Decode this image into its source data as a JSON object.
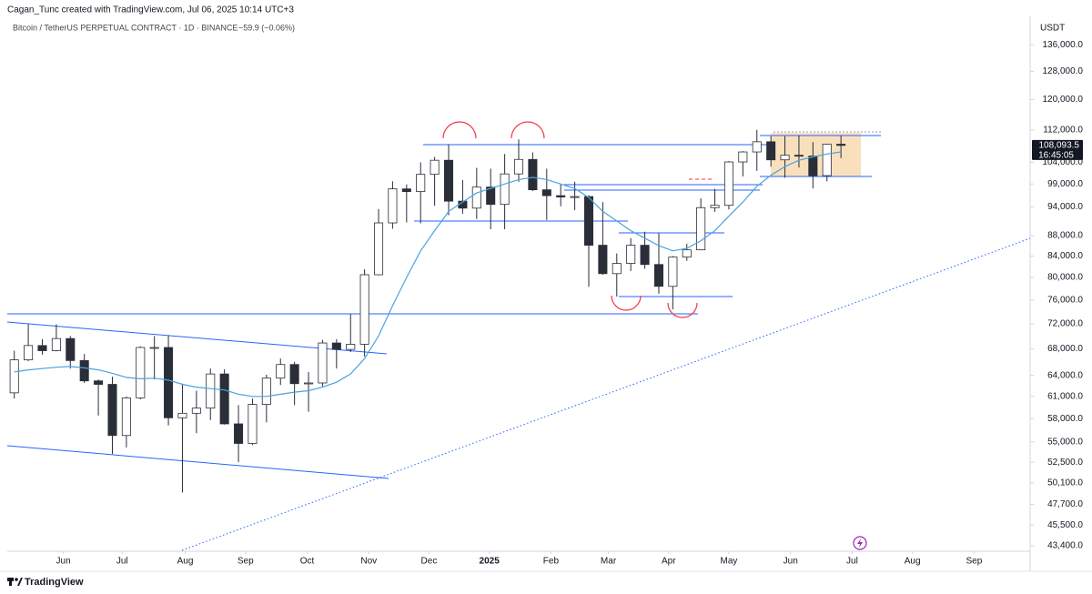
{
  "chart_data": {
    "type": "candlestick",
    "attribution": "Cagan_Tunc created with TradingView.com, Jul 06, 2025 10:14 UTC+3",
    "title": "Bitcoin / TetherUS PERPETUAL CONTRACT · 1D · BINANCE",
    "change": "−59.9 (−0.06%)",
    "axis_label": "USDT",
    "last_price": {
      "value": 108093.5,
      "label": "108,093.5"
    },
    "countdown": "16:45:05",
    "brand": "TradingView",
    "log_scale": true,
    "grid": false,
    "up_color": "#ffffff",
    "down_color": "#2a2e39",
    "wick_color": "#2a2e39",
    "ma_color": "#4aa3df",
    "open": [
      61500,
      66300,
      68500,
      67700,
      69600,
      66200,
      63200,
      62700,
      55800,
      60800,
      68200,
      68200,
      58100,
      58700,
      59400,
      64200,
      57300,
      54800,
      59900,
      63600,
      65600,
      62800,
      62900,
      68900,
      67900,
      68700,
      80500,
      90600,
      97900,
      97300,
      101200,
      104500,
      95200,
      93700,
      98300,
      94500,
      101300,
      104700,
      97700,
      96400,
      96100,
      96200,
      86100,
      80700,
      82600,
      86100,
      82400,
      78400,
      83800,
      85200,
      93800,
      94300,
      104100,
      106500,
      109000,
      104600,
      105700,
      105500,
      100900,
      108400
    ],
    "high": [
      67700,
      71900,
      69500,
      71900,
      70000,
      67200,
      63400,
      63800,
      61000,
      68400,
      70000,
      70100,
      62800,
      61800,
      65000,
      64900,
      59800,
      60700,
      64100,
      66500,
      66000,
      64500,
      69400,
      69500,
      73600,
      81500,
      93500,
      99600,
      98900,
      104000,
      105300,
      108400,
      99900,
      102700,
      102500,
      106000,
      109600,
      106400,
      102500,
      98900,
      99500,
      96500,
      95000,
      84500,
      87500,
      88800,
      88500,
      84000,
      86400,
      95800,
      97900,
      104300,
      106700,
      112000,
      110400,
      110400,
      110600,
      108900,
      108500,
      110500
    ],
    "low": [
      60700,
      66100,
      67100,
      67600,
      65000,
      62900,
      58400,
      53500,
      54300,
      60600,
      63400,
      57100,
      49000,
      56100,
      57800,
      57200,
      52500,
      54600,
      57500,
      62600,
      59800,
      58900,
      62400,
      65000,
      67500,
      66800,
      80400,
      89400,
      90700,
      90500,
      94200,
      92200,
      92500,
      91400,
      89300,
      89300,
      99500,
      97400,
      91200,
      94100,
      93300,
      78300,
      80500,
      76600,
      81200,
      81600,
      77100,
      74400,
      83100,
      85100,
      92900,
      93400,
      100700,
      102000,
      103000,
      100400,
      102800,
      98000,
      99600,
      105000
    ],
    "close": [
      66300,
      68500,
      67700,
      69600,
      66200,
      63200,
      62700,
      55800,
      60800,
      68200,
      68200,
      58100,
      58700,
      59400,
      64200,
      57300,
      54800,
      59900,
      63600,
      65600,
      62800,
      62900,
      68900,
      67900,
      68700,
      80500,
      90600,
      97900,
      97300,
      101200,
      104500,
      95200,
      93700,
      98300,
      94500,
      101300,
      104700,
      97700,
      96400,
      96100,
      96200,
      86100,
      80700,
      82600,
      86100,
      82400,
      78400,
      83800,
      85200,
      93800,
      94300,
      104100,
      106500,
      109000,
      104600,
      105700,
      105500,
      100900,
      108400,
      108100
    ],
    "moving_average": [
      64500,
      64800,
      65000,
      65200,
      65300,
      65100,
      64800,
      64300,
      63700,
      63500,
      63600,
      63300,
      62700,
      62300,
      62100,
      61900,
      61300,
      61000,
      61000,
      61300,
      61600,
      61800,
      62300,
      63000,
      64200,
      66500,
      70000,
      75000,
      80000,
      85000,
      89000,
      93000,
      95000,
      97000,
      98000,
      99000,
      100000,
      100500,
      100000,
      99000,
      98000,
      96000,
      93000,
      91000,
      89000,
      87500,
      86000,
      85000,
      85500,
      87000,
      89000,
      92000,
      95000,
      98500,
      101000,
      103000,
      104500,
      105300,
      106000,
      106500
    ],
    "xlim": [
      -0.5,
      72.5
    ],
    "xticks": [
      {
        "value": 3.5,
        "label": "Jun"
      },
      {
        "value": 7.7,
        "label": "Jul"
      },
      {
        "value": 12.2,
        "label": "Aug"
      },
      {
        "value": 16.5,
        "label": "Sep"
      },
      {
        "value": 20.9,
        "label": "Oct"
      },
      {
        "value": 25.3,
        "label": "Nov"
      },
      {
        "value": 29.6,
        "label": "Dec"
      },
      {
        "value": 33.9,
        "label": "2025"
      },
      {
        "value": 38.3,
        "label": "Feb"
      },
      {
        "value": 42.4,
        "label": "Mar"
      },
      {
        "value": 46.7,
        "label": "Apr"
      },
      {
        "value": 51.0,
        "label": "May"
      },
      {
        "value": 55.4,
        "label": "Jun"
      },
      {
        "value": 59.8,
        "label": "Jul"
      },
      {
        "value": 64.1,
        "label": "Aug"
      },
      {
        "value": 68.5,
        "label": "Sep"
      }
    ],
    "ylim": [
      42860,
      141500
    ],
    "yticks": [
      {
        "value": 136000,
        "label": "136,000.0"
      },
      {
        "value": 128000,
        "label": "128,000.0"
      },
      {
        "value": 120000,
        "label": "120,000.0"
      },
      {
        "value": 112000,
        "label": "112,000.0"
      },
      {
        "value": 104000,
        "label": "104,000.0"
      },
      {
        "value": 99000,
        "label": "99,000.0"
      },
      {
        "value": 94000,
        "label": "94,000.0"
      },
      {
        "value": 88000,
        "label": "88,000.0"
      },
      {
        "value": 84000,
        "label": "84,000.0"
      },
      {
        "value": 80000,
        "label": "80,000.0"
      },
      {
        "value": 76000,
        "label": "76,000.0"
      },
      {
        "value": 72000,
        "label": "72,000.0"
      },
      {
        "value": 68000,
        "label": "68,000.0"
      },
      {
        "value": 64000,
        "label": "64,000.0"
      },
      {
        "value": 61000,
        "label": "61,000.0"
      },
      {
        "value": 58000,
        "label": "58,000.0"
      },
      {
        "value": 55000,
        "label": "55,000.0"
      },
      {
        "value": 52500,
        "label": "52,500.0"
      },
      {
        "value": 50100,
        "label": "50,100.0"
      },
      {
        "value": 47700,
        "label": "47,700.0"
      },
      {
        "value": 45500,
        "label": "45,500.0"
      },
      {
        "value": 43400,
        "label": "43,400.0"
      }
    ]
  }
}
